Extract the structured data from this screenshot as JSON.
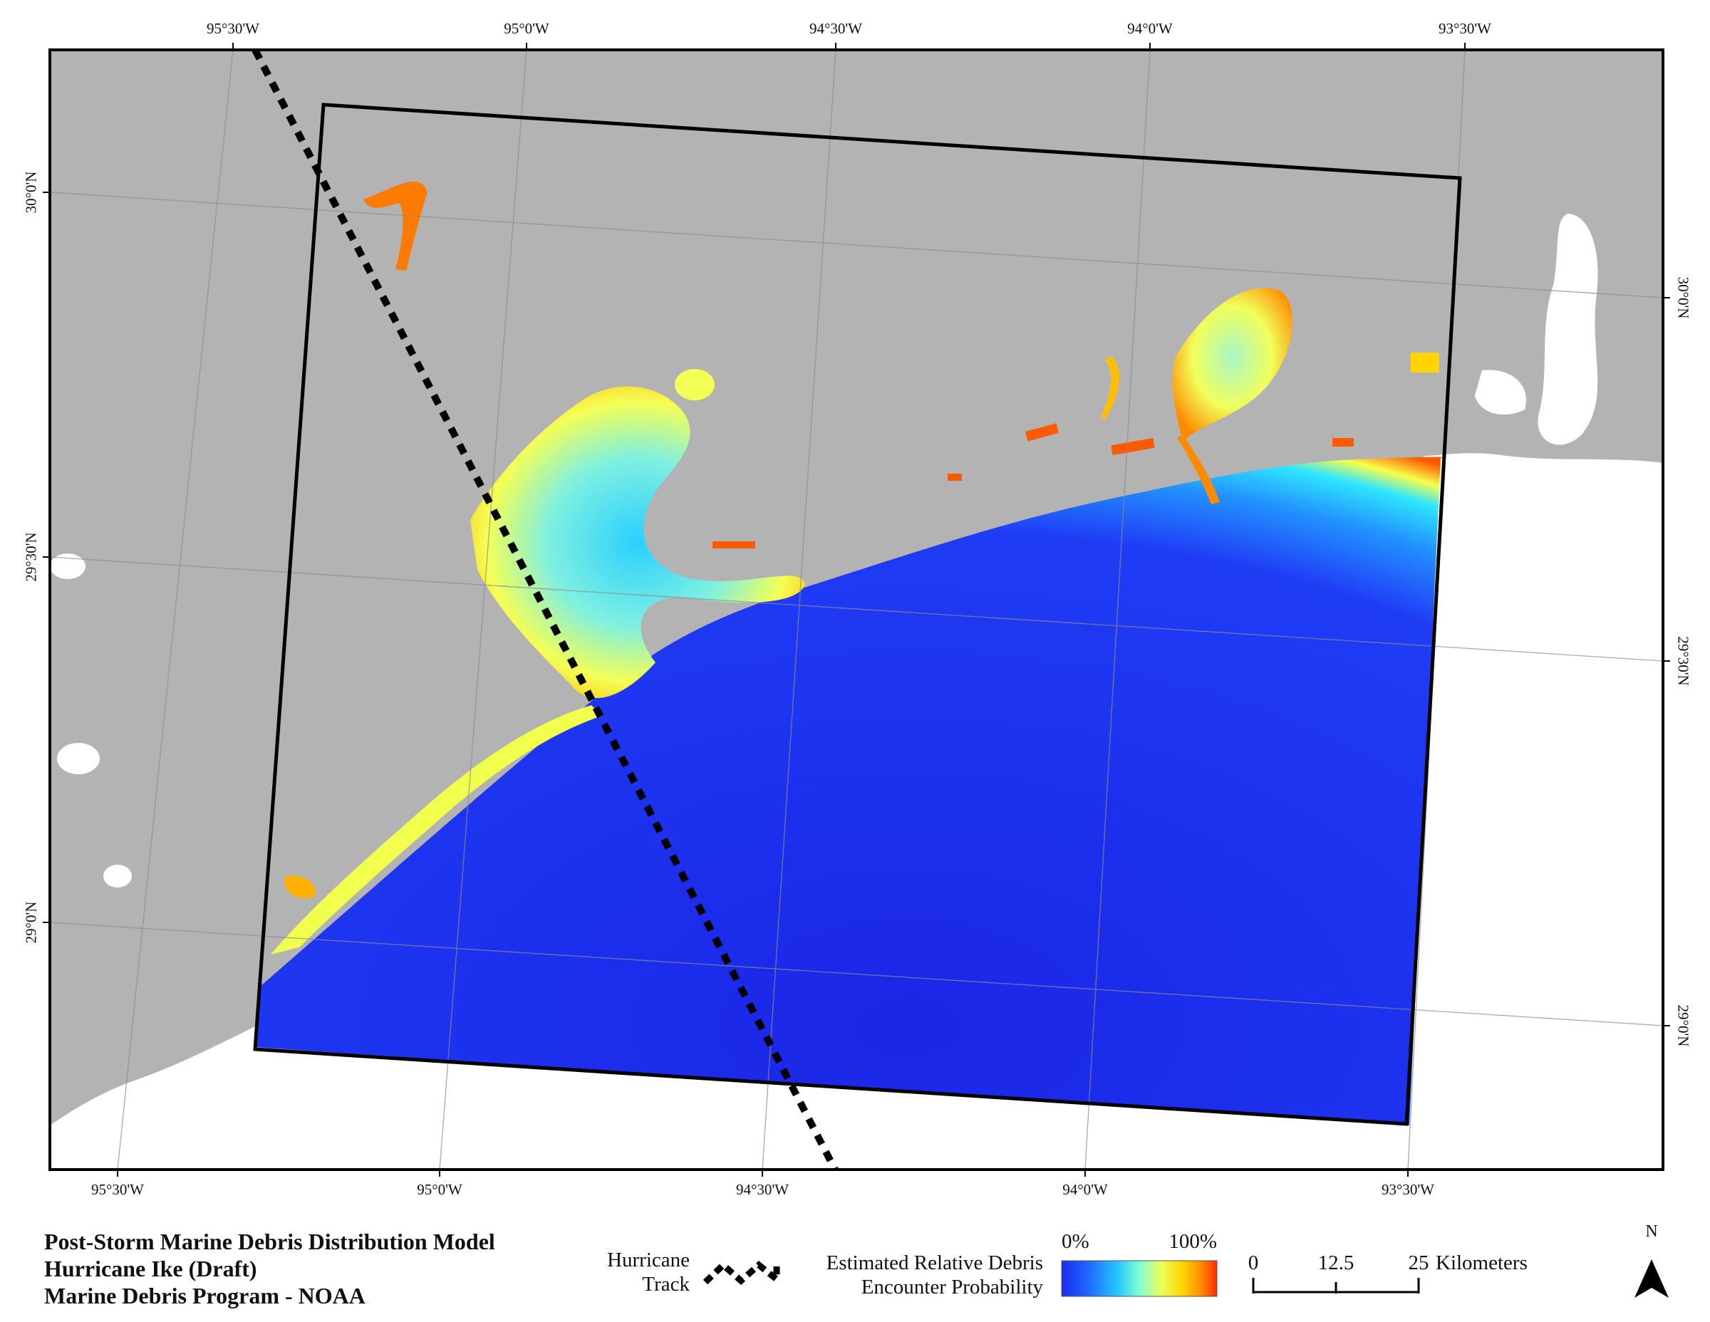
{
  "map": {
    "title_lines": [
      "Post-Storm Marine Debris Distribution Model",
      "Hurricane Ike (Draft)",
      "Marine Debris Program - NOAA"
    ],
    "top_ticks": [
      "95°30'W",
      "95°0'W",
      "94°30'W",
      "94°0'W",
      "93°30'W"
    ],
    "bottom_ticks": [
      "95°30'W",
      "95°0'W",
      "94°30'W",
      "94°0'W",
      "93°30'W"
    ],
    "left_ticks": [
      "30°0'N",
      "29°30'N",
      "29°0'N"
    ],
    "right_ticks": [
      "30°0'N",
      "29°30'N",
      "29°0'N"
    ],
    "colors": {
      "land": "#b3b3b3",
      "water_outside": "#ffffff",
      "frame": "#000000",
      "track": "#000000",
      "gradient": [
        "#1a2cf0",
        "#1f6cff",
        "#25c6ff",
        "#7fffd4",
        "#eaff5a",
        "#ffd400",
        "#ff8a00",
        "#ff2a00"
      ]
    }
  },
  "legend": {
    "track_label": [
      "Hurricane",
      "Track"
    ],
    "probability_label": [
      "Estimated Relative Debris",
      "Encounter Probability"
    ],
    "ramp_min": "0%",
    "ramp_max": "100%",
    "scale_ticks": [
      "0",
      "12.5",
      "25"
    ],
    "scale_units": "Kilometers",
    "north_label": "N"
  }
}
